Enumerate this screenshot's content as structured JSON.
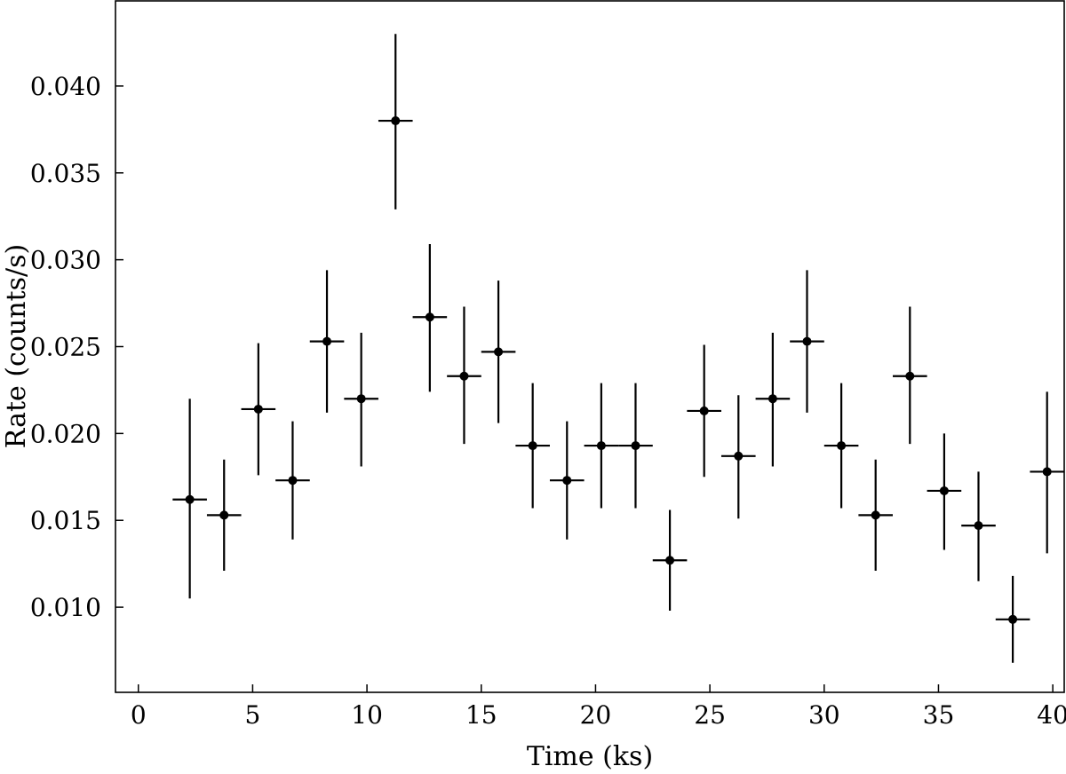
{
  "chart_data": {
    "type": "scatter",
    "title": "",
    "xlabel": "Time (ks)",
    "ylabel": "Rate (counts/s)",
    "xlim": [
      -1,
      40.5
    ],
    "ylim": [
      0.0051,
      0.0449
    ],
    "xticks": [
      0,
      5,
      10,
      15,
      20,
      25,
      30,
      35,
      40
    ],
    "xtick_labels": [
      "0",
      "5",
      "10",
      "15",
      "20",
      "25",
      "30",
      "35",
      "40"
    ],
    "yticks": [
      0.01,
      0.015,
      0.02,
      0.025,
      0.03,
      0.035,
      0.04
    ],
    "ytick_labels": [
      "0.010",
      "0.015",
      "0.020",
      "0.025",
      "0.030",
      "0.035",
      "0.040"
    ],
    "grid": false,
    "marker_color": "#000000",
    "x_halfwidth": 0.75,
    "series": [
      {
        "x": [
          2.25,
          3.75,
          5.25,
          6.75,
          8.25,
          9.75,
          11.25,
          12.75,
          14.25,
          15.75,
          17.25,
          18.75,
          20.25,
          21.75,
          23.25,
          24.75,
          26.25,
          27.75,
          29.25,
          30.75,
          32.25,
          33.75,
          35.25,
          36.75,
          38.25,
          39.75
        ],
        "y": [
          0.0162,
          0.0153,
          0.0214,
          0.0173,
          0.0253,
          0.022,
          0.038,
          0.0267,
          0.0233,
          0.0247,
          0.0193,
          0.0173,
          0.0193,
          0.0193,
          0.0127,
          0.0213,
          0.0187,
          0.022,
          0.0253,
          0.0193,
          0.0153,
          0.0233,
          0.0167,
          0.0147,
          0.0093,
          0.0178
        ],
        "ylow": [
          0.0105,
          0.0121,
          0.0176,
          0.0139,
          0.0212,
          0.0181,
          0.0329,
          0.0224,
          0.0194,
          0.0206,
          0.0157,
          0.0139,
          0.0157,
          0.0157,
          0.0098,
          0.0175,
          0.0151,
          0.0181,
          0.0212,
          0.0157,
          0.0121,
          0.0194,
          0.0133,
          0.0115,
          0.0068,
          0.0131
        ],
        "yhigh": [
          0.022,
          0.0185,
          0.0252,
          0.0207,
          0.0294,
          0.0258,
          0.043,
          0.0309,
          0.0273,
          0.0288,
          0.0229,
          0.0207,
          0.0229,
          0.0229,
          0.0156,
          0.0251,
          0.0222,
          0.0258,
          0.0294,
          0.0229,
          0.0185,
          0.0273,
          0.02,
          0.0178,
          0.0118,
          0.0224
        ]
      }
    ]
  }
}
